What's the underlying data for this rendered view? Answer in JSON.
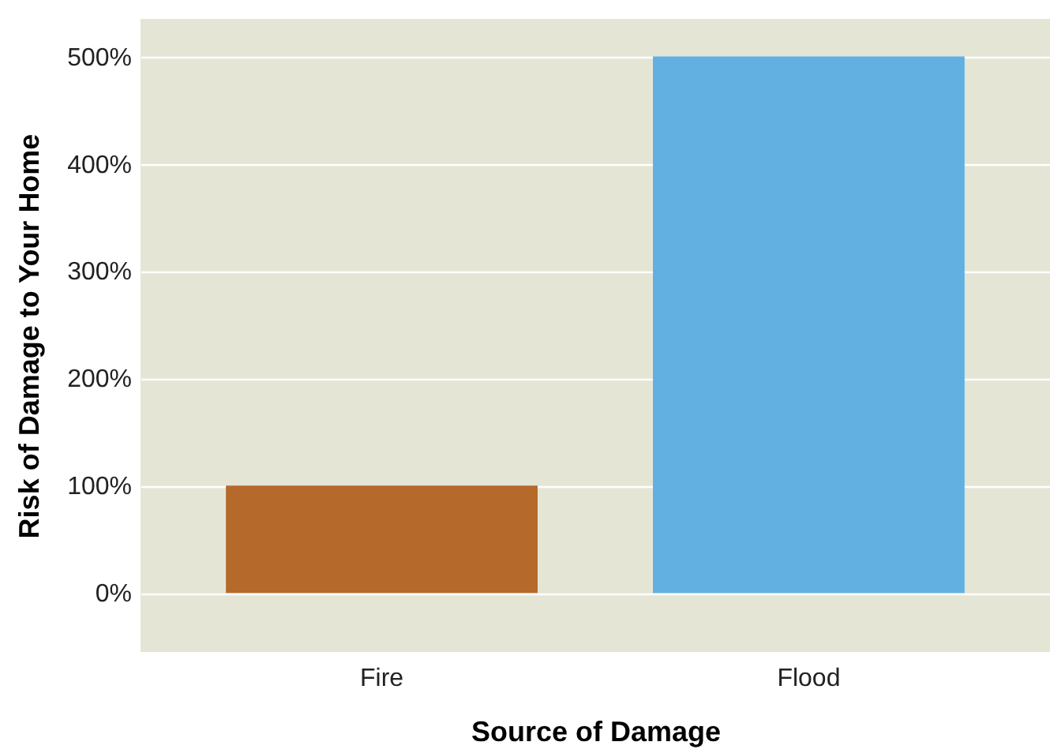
{
  "chart_data": {
    "type": "bar",
    "xlabel": "Source of Damage",
    "ylabel": "Risk of Damage to Your Home",
    "categories": [
      "Fire",
      "Flood"
    ],
    "values": [
      100,
      500
    ],
    "colors": [
      "#b5692a",
      "#62b0e2"
    ],
    "ylim": [
      -55,
      535
    ],
    "yticks": [
      {
        "value": 0,
        "label": "0%"
      },
      {
        "value": 100,
        "label": "100%"
      },
      {
        "value": 200,
        "label": "200%"
      },
      {
        "value": 300,
        "label": "300%"
      },
      {
        "value": 400,
        "label": "400%"
      },
      {
        "value": 500,
        "label": "500%"
      }
    ],
    "grid": "y"
  }
}
